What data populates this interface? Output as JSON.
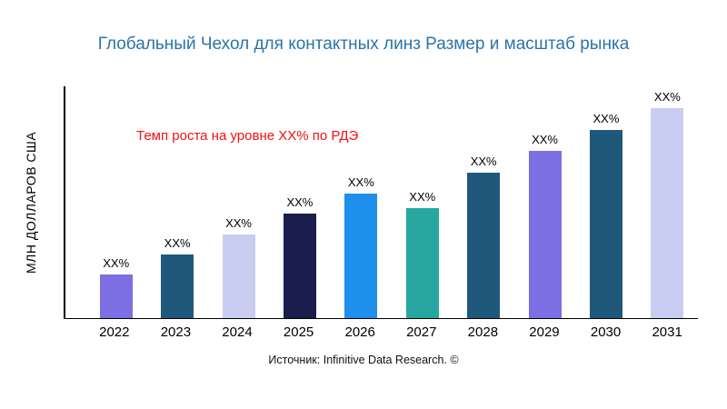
{
  "title": "Глобальный Чехол для контактных линз Размер и масштаб рынка",
  "ylabel": "МЛН ДОЛЛАРОВ США",
  "annotation": "Темп роста на уровне XX% по РДЭ",
  "source": "Источник: Infinitive Data Research. ©",
  "colors": {
    "title": "#2B74A8",
    "annotation": "#F40F12",
    "axis": "#000000",
    "background": "#FFFFFF"
  },
  "chart_data": {
    "type": "bar",
    "title": "Глобальный Чехол для контактных линз Размер и масштаб рынка",
    "xlabel": "",
    "ylabel": "МЛН ДОЛЛАРОВ США",
    "categories": [
      "2022",
      "2023",
      "2024",
      "2025",
      "2026",
      "2027",
      "2028",
      "2029",
      "2030",
      "2031"
    ],
    "values": [
      48,
      70,
      92,
      115,
      137,
      121,
      160,
      184,
      207,
      231
    ],
    "units": "relative bar heights (y-axis has no numeric ticks; data labels show XX%)",
    "bar_labels": [
      "XX%",
      "XX%",
      "XX%",
      "XX%",
      "XX%",
      "XX%",
      "XX%",
      "XX%",
      "XX%",
      "XX%"
    ],
    "bar_colors": [
      "#7C6FE4",
      "#20587C",
      "#C9CDF1",
      "#1B1D4D",
      "#1E8FEB",
      "#28A7A1",
      "#20587C",
      "#7C6FE4",
      "#20587C",
      "#C9CDF1"
    ],
    "annotation": "Темп роста на уровне XX% по РДЭ",
    "legend": null,
    "grid": false,
    "source": "Источник: Infinitive Data Research. ©"
  }
}
